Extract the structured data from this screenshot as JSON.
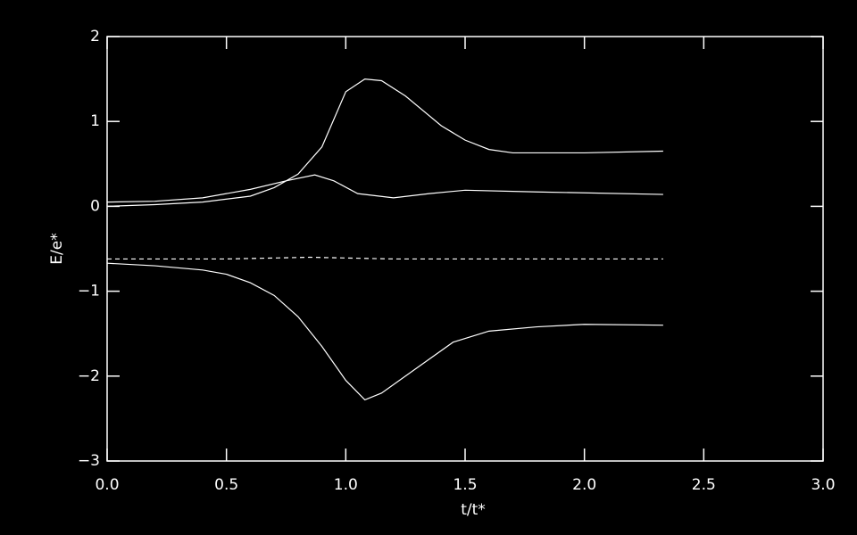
{
  "chart_data": {
    "type": "line",
    "xlabel": "t/t*",
    "ylabel": "E/e*",
    "xlim": [
      0,
      3
    ],
    "ylim": [
      -3,
      2
    ],
    "xticks": [
      {
        "value": 0,
        "label": "0.0"
      },
      0.5,
      {
        "value": 1,
        "label": "1.0"
      },
      1.5,
      {
        "value": 2,
        "label": "2.0"
      },
      2.5,
      {
        "value": 3,
        "label": "3.0"
      }
    ],
    "yticks": [
      {
        "value": -3,
        "label": "−3"
      },
      {
        "value": -2,
        "label": "−2"
      },
      {
        "value": -1,
        "label": "−1"
      },
      0,
      1,
      2
    ],
    "background": "#000000",
    "axis_color": "#ffffff",
    "series": [
      {
        "color": "#ffffff",
        "dashed": false,
        "x": [
          0,
          0.2,
          0.4,
          0.6,
          0.7,
          0.8,
          0.9,
          1.0,
          1.08,
          1.15,
          1.25,
          1.4,
          1.5,
          1.6,
          1.7,
          2.0,
          2.33
        ],
        "values": [
          0.0,
          0.02,
          0.05,
          0.12,
          0.22,
          0.38,
          0.7,
          1.35,
          1.5,
          1.48,
          1.3,
          0.95,
          0.78,
          0.67,
          0.63,
          0.63,
          0.65
        ]
      },
      {
        "color": "#ffffff",
        "dashed": false,
        "x": [
          0,
          0.2,
          0.4,
          0.6,
          0.75,
          0.87,
          0.95,
          1.05,
          1.2,
          1.35,
          1.5,
          1.8,
          2.33
        ],
        "values": [
          0.05,
          0.06,
          0.1,
          0.2,
          0.3,
          0.37,
          0.3,
          0.15,
          0.1,
          0.15,
          0.19,
          0.17,
          0.14
        ]
      },
      {
        "color": "#ffffff",
        "dashed": true,
        "x": [
          0,
          0.5,
          0.85,
          1.2,
          2.33
        ],
        "values": [
          -0.62,
          -0.62,
          -0.6,
          -0.62,
          -0.62
        ]
      },
      {
        "color": "#ffffff",
        "dashed": false,
        "x": [
          0,
          0.2,
          0.4,
          0.5,
          0.6,
          0.7,
          0.8,
          0.9,
          1.0,
          1.08,
          1.15,
          1.3,
          1.45,
          1.6,
          1.8,
          2.0,
          2.33
        ],
        "values": [
          -0.67,
          -0.7,
          -0.75,
          -0.8,
          -0.9,
          -1.05,
          -1.3,
          -1.65,
          -2.05,
          -2.28,
          -2.2,
          -1.9,
          -1.6,
          -1.47,
          -1.42,
          -1.39,
          -1.4
        ]
      }
    ]
  }
}
